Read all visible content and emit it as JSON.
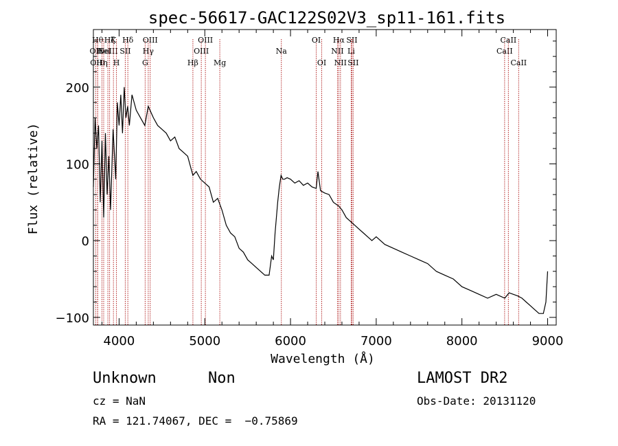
{
  "chart_data": {
    "type": "line",
    "title": "spec-56617-GAC122S02V3_sp11-161.fits",
    "xlabel": "Wavelength (Å)",
    "ylabel": "Flux (relative)",
    "xlim": [
      3700,
      9100
    ],
    "ylim": [
      -110,
      275
    ],
    "xticks": [
      4000,
      5000,
      6000,
      7000,
      8000,
      9000
    ],
    "yticks": [
      -100,
      0,
      100,
      200
    ],
    "xtick_labels": [
      "4000",
      "5000",
      "6000",
      "7000",
      "8000",
      "9000"
    ],
    "ytick_labels": [
      "−100",
      "0",
      "100",
      "200"
    ],
    "series": [
      {
        "x": [
          3700,
          3720,
          3740,
          3760,
          3780,
          3800,
          3820,
          3840,
          3860,
          3880,
          3900,
          3930,
          3960,
          3980,
          4000,
          4020,
          4040,
          4060,
          4080,
          4100,
          4120,
          4150,
          4200,
          4250,
          4300,
          4340,
          4400,
          4450,
          4500,
          4550,
          4600,
          4650,
          4700,
          4750,
          4800,
          4861,
          4900,
          4950,
          5000,
          5050,
          5100,
          5150,
          5200,
          5250,
          5300,
          5350,
          5400,
          5450,
          5500,
          5550,
          5600,
          5650,
          5700,
          5750,
          5780,
          5800,
          5820,
          5850,
          5870,
          5890,
          5910,
          5930,
          5960,
          6000,
          6050,
          6100,
          6150,
          6200,
          6250,
          6300,
          6320,
          6350,
          6400,
          6450,
          6500,
          6563,
          6600,
          6650,
          6700,
          6750,
          6800,
          6850,
          6900,
          6950,
          7000,
          7100,
          7200,
          7300,
          7400,
          7500,
          7600,
          7700,
          7800,
          7900,
          8000,
          8100,
          8200,
          8300,
          8400,
          8500,
          8550,
          8600,
          8650,
          8700,
          8750,
          8800,
          8850,
          8900,
          8950,
          8980,
          9000
        ],
        "values": [
          70,
          160,
          120,
          150,
          50,
          130,
          30,
          140,
          60,
          110,
          40,
          145,
          80,
          180,
          150,
          190,
          140,
          200,
          160,
          175,
          150,
          190,
          170,
          160,
          150,
          175,
          160,
          150,
          145,
          140,
          130,
          135,
          120,
          115,
          110,
          85,
          90,
          80,
          75,
          70,
          50,
          55,
          40,
          20,
          10,
          5,
          -10,
          -15,
          -25,
          -30,
          -35,
          -40,
          -45,
          -45,
          -20,
          -25,
          10,
          50,
          70,
          85,
          80,
          80,
          82,
          80,
          75,
          78,
          72,
          75,
          70,
          68,
          90,
          65,
          62,
          60,
          50,
          45,
          40,
          30,
          25,
          20,
          15,
          10,
          5,
          0,
          5,
          -5,
          -10,
          -15,
          -20,
          -25,
          -30,
          -40,
          -45,
          -50,
          -60,
          -65,
          -70,
          -75,
          -70,
          -75,
          -68,
          -70,
          -72,
          -75,
          -80,
          -85,
          -90,
          -95,
          -95,
          -80,
          -40
        ]
      }
    ],
    "lines": [
      {
        "wavelength": 3727,
        "label": "OII",
        "row": 1
      },
      {
        "wavelength": 3750,
        "label": "Hθ",
        "row": 0
      },
      {
        "wavelength": 3750,
        "label": "OIII",
        "row": 2
      },
      {
        "wavelength": 3800,
        "label": "Hη",
        "row": 2
      },
      {
        "wavelength": 3820,
        "label": "HeI",
        "row": 1
      },
      {
        "wavelength": 3869,
        "label": "NeIII",
        "row": 1
      },
      {
        "wavelength": 3889,
        "label": "Hζ",
        "row": 0
      },
      {
        "wavelength": 3934,
        "label": "K",
        "row": 0
      },
      {
        "wavelength": 3969,
        "label": "H",
        "row": 2
      },
      {
        "wavelength": 4072,
        "label": "SII",
        "row": 1
      },
      {
        "wavelength": 4102,
        "label": "Hδ",
        "row": 0
      },
      {
        "wavelength": 4304,
        "label": "G",
        "row": 2
      },
      {
        "wavelength": 4340,
        "label": "Hγ",
        "row": 1
      },
      {
        "wavelength": 4363,
        "label": "OIII",
        "row": 0
      },
      {
        "wavelength": 4861,
        "label": "Hβ",
        "row": 2
      },
      {
        "wavelength": 4959,
        "label": "OIII",
        "row": 1
      },
      {
        "wavelength": 5007,
        "label": "OIII",
        "row": 0
      },
      {
        "wavelength": 5175,
        "label": "Mg",
        "row": 2
      },
      {
        "wavelength": 5893,
        "label": "Na",
        "row": 1
      },
      {
        "wavelength": 6300,
        "label": "OI",
        "row": 0
      },
      {
        "wavelength": 6364,
        "label": "OI",
        "row": 2
      },
      {
        "wavelength": 6548,
        "label": "NII",
        "row": 1
      },
      {
        "wavelength": 6563,
        "label": "Hα",
        "row": 0
      },
      {
        "wavelength": 6583,
        "label": "NII",
        "row": 2
      },
      {
        "wavelength": 6708,
        "label": "Li",
        "row": 1
      },
      {
        "wavelength": 6716,
        "label": "SII",
        "row": 0
      },
      {
        "wavelength": 6731,
        "label": "SII",
        "row": 2
      },
      {
        "wavelength": 8498,
        "label": "CaII",
        "row": 1
      },
      {
        "wavelength": 8542,
        "label": "CaII",
        "row": 0
      },
      {
        "wavelength": 8662,
        "label": "CaII",
        "row": 2
      }
    ]
  },
  "info": {
    "class_text": "Unknown",
    "subclass_text": "Non",
    "survey": "LAMOST DR2",
    "cz": "cz = NaN",
    "obs_date": "Obs-Date: 20131120",
    "radec": "RA = 121.74067, DEC =  −0.75869"
  },
  "colors": {
    "spectrum": "#000000",
    "line_marker": "#b22222"
  }
}
